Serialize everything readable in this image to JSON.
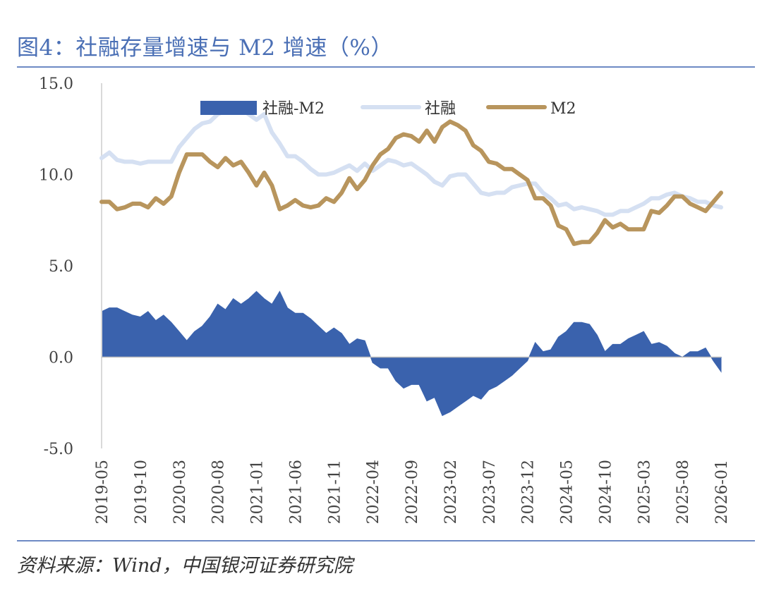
{
  "header": {
    "title": "图4：社融存量增速与 M2 增速（%）"
  },
  "footer": {
    "source": "资料来源：Wind，中国银河证券研究院"
  },
  "colors": {
    "diff": "#3a62ad",
    "tsf": "#d5e0f2",
    "m2": "#b8955d",
    "axis": "#d9d9d9",
    "rule": "#6d8ac4"
  },
  "chart_data": {
    "type": "line",
    "title": "社融存量增速与 M2 增速（%）",
    "xlabel": "",
    "ylabel": "",
    "ylim": [
      -5,
      15
    ],
    "yticks": [
      15,
      10,
      5,
      0,
      -5
    ],
    "ytick_labels": [
      "15.0",
      "10.0",
      "5.0",
      "0.0",
      "-5.0"
    ],
    "x_tick_labels": [
      "2019-05",
      "2019-10",
      "2020-03",
      "2020-08",
      "2021-01",
      "2021-06",
      "2021-11",
      "2022-04",
      "2022-09",
      "2023-02",
      "2023-07",
      "2023-12",
      "2024-05",
      "2024-10",
      "2025-03",
      "2025-08",
      "2026-01"
    ],
    "legend": [
      "社融-M2",
      "社融",
      "M2"
    ],
    "legend_position": "top",
    "categories": [
      "2019-05",
      "2019-06",
      "2019-07",
      "2019-08",
      "2019-09",
      "2019-10",
      "2019-11",
      "2019-12",
      "2020-01",
      "2020-02",
      "2020-03",
      "2020-04",
      "2020-05",
      "2020-06",
      "2020-07",
      "2020-08",
      "2020-09",
      "2020-10",
      "2020-11",
      "2020-12",
      "2021-01",
      "2021-02",
      "2021-03",
      "2021-04",
      "2021-05",
      "2021-06",
      "2021-07",
      "2021-08",
      "2021-09",
      "2021-10",
      "2021-11",
      "2021-12",
      "2022-01",
      "2022-02",
      "2022-03",
      "2022-04",
      "2022-05",
      "2022-06",
      "2022-07",
      "2022-08",
      "2022-09",
      "2022-10",
      "2022-11",
      "2022-12",
      "2023-01",
      "2023-02",
      "2023-03",
      "2023-04",
      "2023-05",
      "2023-06",
      "2023-07",
      "2023-08",
      "2023-09",
      "2023-10",
      "2023-11",
      "2023-12",
      "2024-01",
      "2024-02",
      "2024-03",
      "2024-04",
      "2024-05",
      "2024-06",
      "2024-07",
      "2024-08",
      "2024-09",
      "2024-10",
      "2024-11",
      "2024-12",
      "2025-01",
      "2025-02",
      "2025-03",
      "2025-04",
      "2025-05",
      "2025-06",
      "2025-07",
      "2025-08",
      "2025-09",
      "2025-10",
      "2025-11",
      "2025-12",
      "2026-01"
    ],
    "series": [
      {
        "name": "社融",
        "type": "line",
        "values": [
          10.9,
          11.2,
          10.8,
          10.7,
          10.7,
          10.6,
          10.7,
          10.7,
          10.7,
          10.7,
          11.5,
          12.0,
          12.5,
          12.8,
          12.9,
          13.3,
          13.5,
          13.7,
          13.6,
          13.3,
          13.0,
          13.3,
          12.3,
          11.7,
          11.0,
          11.0,
          10.7,
          10.3,
          10.0,
          10.0,
          10.1,
          10.3,
          10.5,
          10.2,
          10.6,
          10.2,
          10.5,
          10.8,
          10.7,
          10.5,
          10.6,
          10.3,
          10.0,
          9.6,
          9.4,
          9.9,
          10.0,
          10.0,
          9.5,
          9.0,
          8.9,
          9.0,
          9.0,
          9.3,
          9.4,
          9.5,
          9.5,
          9.0,
          8.7,
          8.3,
          8.4,
          8.1,
          8.2,
          8.1,
          8.0,
          7.8,
          7.8,
          8.0,
          8.0,
          8.2,
          8.4,
          8.7,
          8.7,
          8.9,
          9.0,
          8.8,
          8.7,
          8.5,
          8.5,
          8.3,
          8.2
        ]
      },
      {
        "name": "M2",
        "type": "line",
        "values": [
          8.5,
          8.5,
          8.1,
          8.2,
          8.4,
          8.4,
          8.2,
          8.7,
          8.4,
          8.8,
          10.1,
          11.1,
          11.1,
          11.1,
          10.7,
          10.4,
          10.9,
          10.5,
          10.7,
          10.1,
          9.4,
          10.1,
          9.4,
          8.1,
          8.3,
          8.6,
          8.3,
          8.2,
          8.3,
          8.7,
          8.5,
          9.0,
          9.8,
          9.2,
          9.7,
          10.5,
          11.1,
          11.4,
          12.0,
          12.2,
          12.1,
          11.8,
          12.4,
          11.8,
          12.6,
          12.9,
          12.7,
          12.4,
          11.6,
          11.3,
          10.7,
          10.6,
          10.3,
          10.3,
          10.0,
          9.7,
          8.7,
          8.7,
          8.3,
          7.2,
          7.0,
          6.2,
          6.3,
          6.3,
          6.8,
          7.5,
          7.1,
          7.3,
          7.0,
          7.0,
          7.0,
          8.0,
          7.9,
          8.3,
          8.8,
          8.8,
          8.4,
          8.2,
          8.0,
          8.5,
          9.0
        ]
      },
      {
        "name": "社融-M2",
        "type": "area",
        "values": [
          2.5,
          2.7,
          2.7,
          2.5,
          2.3,
          2.2,
          2.5,
          2.0,
          2.3,
          1.9,
          1.4,
          0.9,
          1.4,
          1.7,
          2.2,
          2.9,
          2.6,
          3.2,
          2.9,
          3.2,
          3.6,
          3.2,
          2.9,
          3.6,
          2.7,
          2.4,
          2.4,
          2.1,
          1.7,
          1.3,
          1.6,
          1.3,
          0.7,
          1.0,
          0.9,
          -0.3,
          -0.6,
          -0.6,
          -1.3,
          -1.7,
          -1.5,
          -1.5,
          -2.4,
          -2.2,
          -3.2,
          -3.0,
          -2.7,
          -2.4,
          -2.1,
          -2.3,
          -1.8,
          -1.6,
          -1.3,
          -1.0,
          -0.6,
          -0.2,
          0.8,
          0.3,
          0.4,
          1.1,
          1.4,
          1.9,
          1.9,
          1.8,
          1.2,
          0.3,
          0.7,
          0.7,
          1.0,
          1.2,
          1.4,
          0.7,
          0.8,
          0.6,
          0.2,
          0.0,
          0.3,
          0.3,
          0.5,
          -0.2,
          -0.8
        ]
      }
    ]
  }
}
